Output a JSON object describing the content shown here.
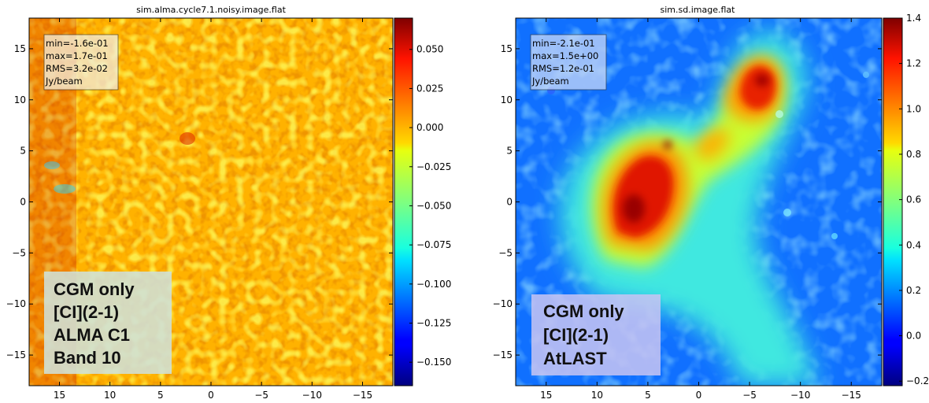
{
  "chart_data": [
    {
      "type": "heatmap",
      "title": "sim.alma.cycle7.1.noisy.image.flat",
      "x_ticks": [
        "15",
        "10",
        "5",
        "0",
        "−5",
        "−10",
        "−15"
      ],
      "y_ticks": [
        "15",
        "10",
        "5",
        "0",
        "−5",
        "−10",
        "−15"
      ],
      "x_tick_values": [
        15,
        10,
        5,
        0,
        -5,
        -10,
        -15
      ],
      "y_tick_values": [
        15,
        10,
        5,
        0,
        -5,
        -10,
        -15
      ],
      "xlim": [
        18,
        -18
      ],
      "ylim": [
        -18,
        18
      ],
      "colorbar": {
        "range": [
          -0.165,
          0.07
        ],
        "ticks": [
          "0.050",
          "0.025",
          "0.000",
          "−0.025",
          "−0.050",
          "−0.075",
          "−0.100",
          "−0.125",
          "−0.150"
        ],
        "tick_values": [
          0.05,
          0.025,
          0.0,
          -0.025,
          -0.05,
          -0.075,
          -0.1,
          -0.125,
          -0.15
        ]
      },
      "stats": [
        "min=-1.6e-01",
        "max=1.7e-01",
        "RMS=3.2e-02",
        "Jy/beam"
      ],
      "annotation": [
        "CGM only",
        "[CI](2-1)",
        "ALMA C1",
        "Band 10"
      ]
    },
    {
      "type": "heatmap",
      "title": "sim.sd.image.flat",
      "x_ticks": [
        "15",
        "10",
        "5",
        "0",
        "−5",
        "−10",
        "−15"
      ],
      "y_ticks": [
        "15",
        "10",
        "5",
        "0",
        "−5",
        "−10",
        "−15"
      ],
      "x_tick_values": [
        15,
        10,
        5,
        0,
        -5,
        -10,
        -15
      ],
      "y_tick_values": [
        15,
        10,
        5,
        0,
        -5,
        -10,
        -15
      ],
      "xlim": [
        18,
        -18
      ],
      "ylim": [
        -18,
        18
      ],
      "colorbar": {
        "range": [
          -0.22,
          1.4
        ],
        "ticks": [
          "1.4",
          "1.2",
          "1.0",
          "0.8",
          "0.6",
          "0.4",
          "0.2",
          "0.0",
          "−0.2"
        ],
        "tick_values": [
          1.4,
          1.2,
          1.0,
          0.8,
          0.6,
          0.4,
          0.2,
          0.0,
          -0.2
        ]
      },
      "stats": [
        "min=-2.1e-01",
        "max=1.5e+00",
        "RMS=1.2e-01",
        "Jy/beam"
      ],
      "annotation": [
        "CGM only",
        "[CI](2-1)",
        "AtLAST"
      ]
    }
  ]
}
